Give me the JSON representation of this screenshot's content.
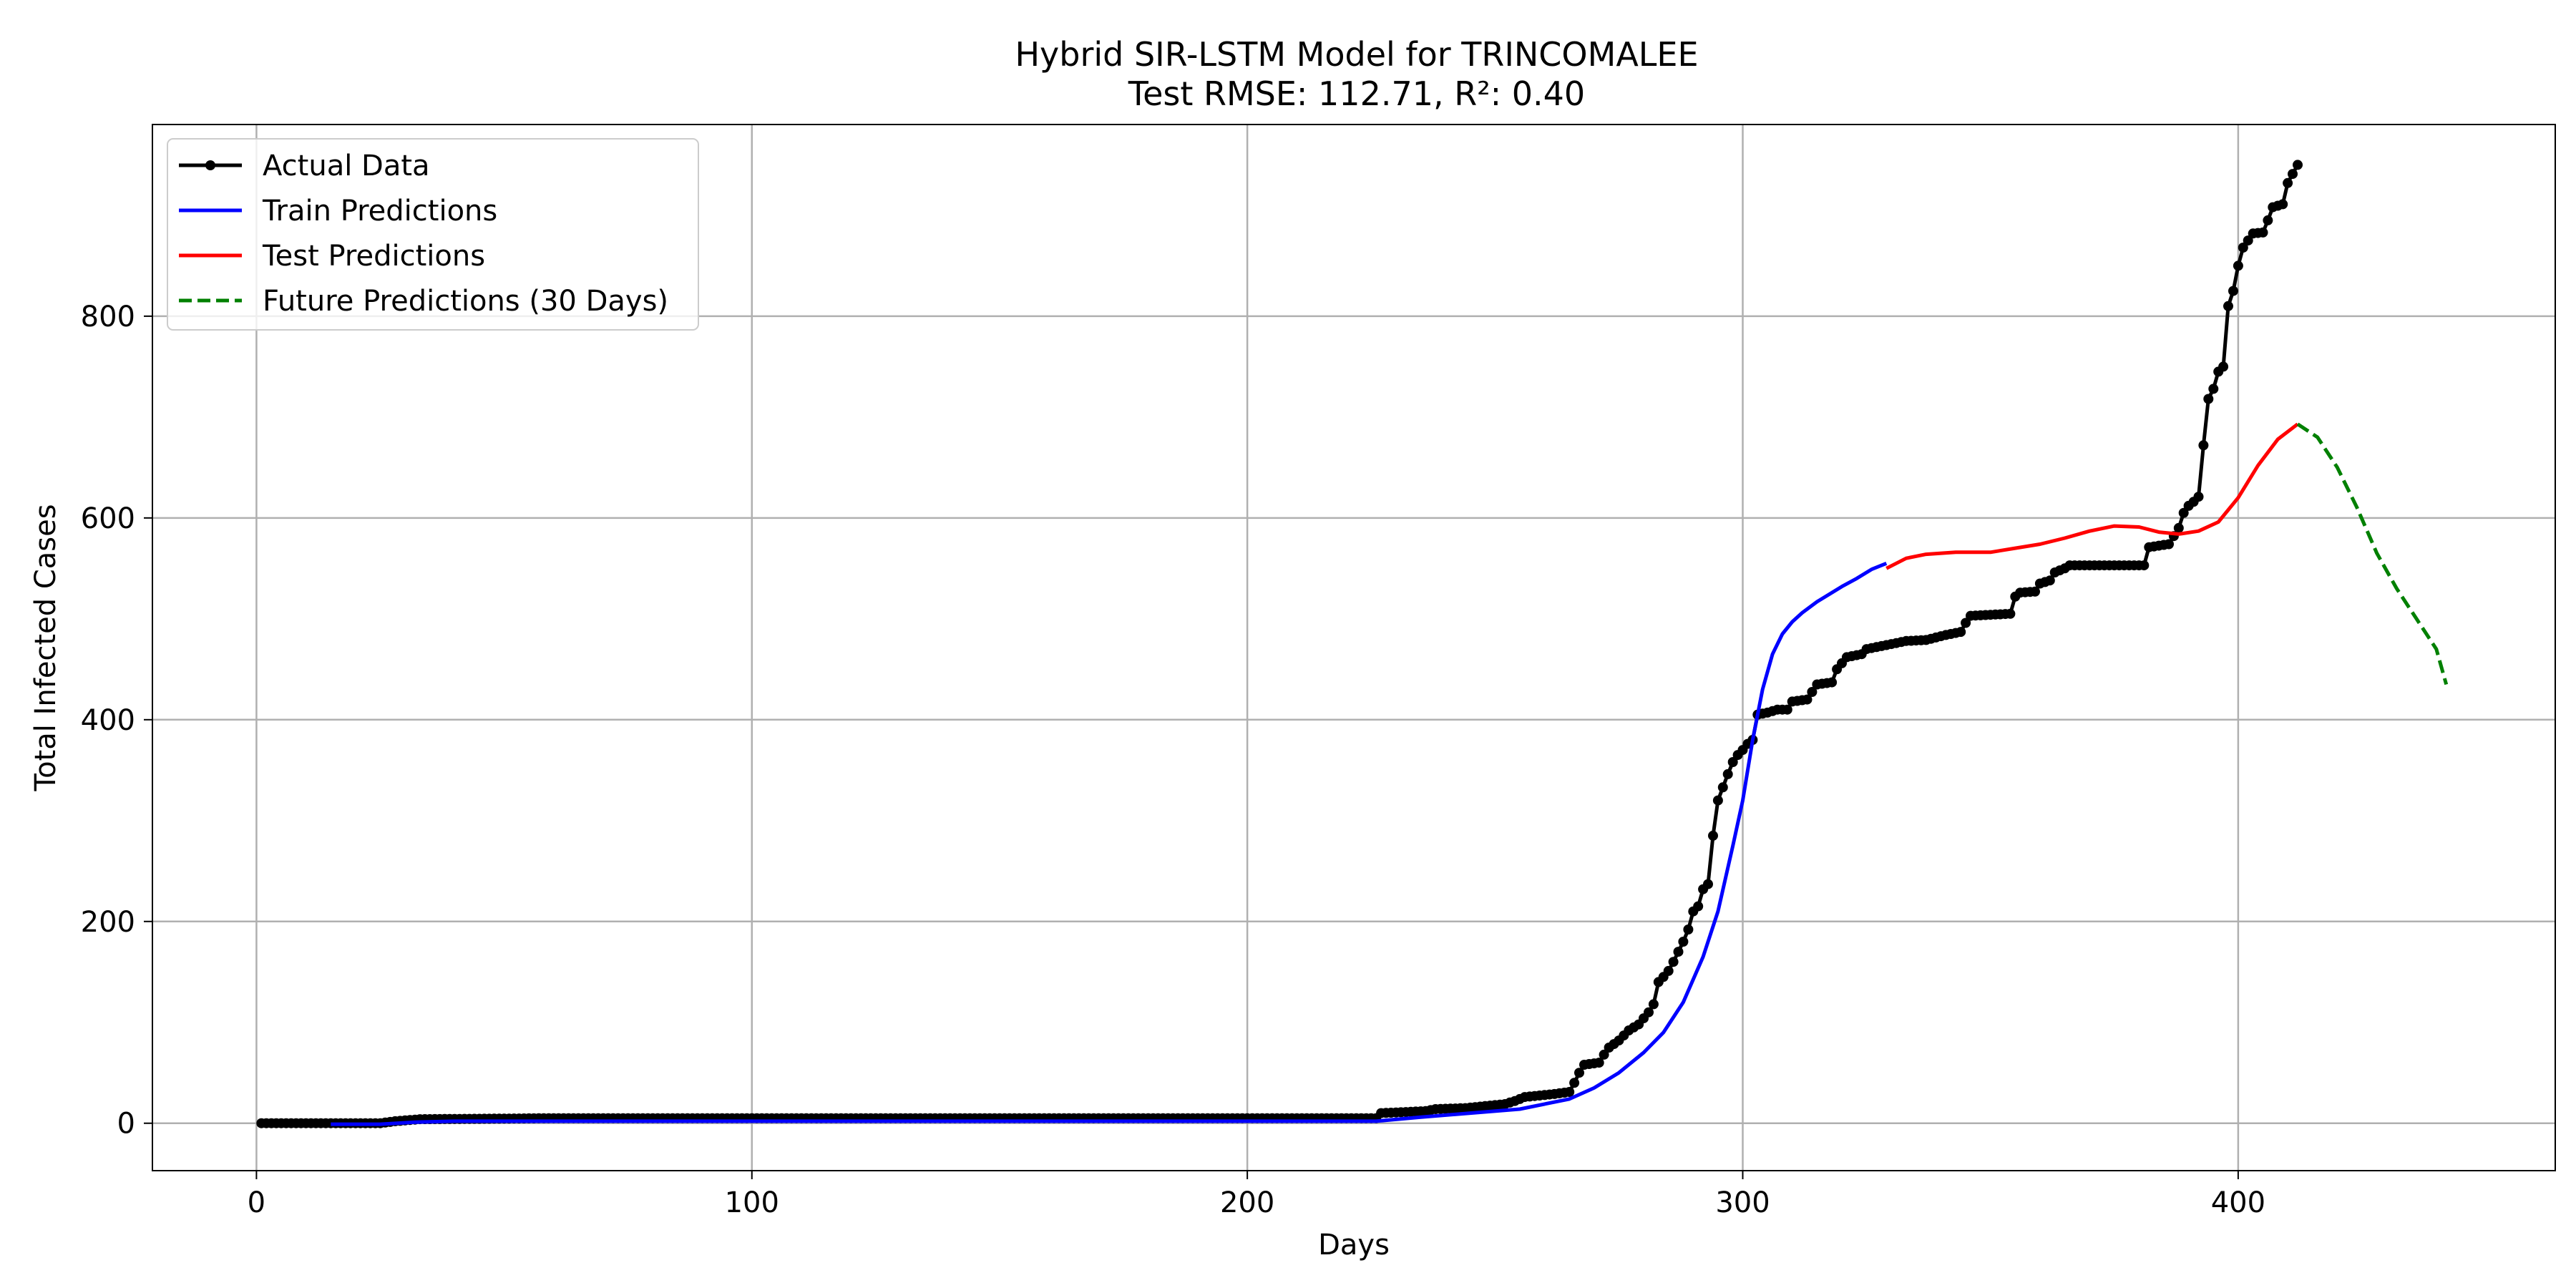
{
  "chart_data": {
    "type": "line",
    "title": "Hybrid SIR-LSTM Model for TRINCOMALEE",
    "subtitle": "Test RMSE: 112.71, R²: 0.40",
    "xlabel": "Days",
    "ylabel": "Total Infected Cases",
    "xlim": [
      -21,
      464
    ],
    "ylim": [
      -47,
      990
    ],
    "xticks": [
      0,
      100,
      200,
      300,
      400
    ],
    "yticks": [
      0,
      200,
      400,
      600,
      800
    ],
    "grid": true,
    "legend_position": "top-left",
    "series": [
      {
        "name": "Actual Data",
        "style": "line-with-markers",
        "color": "#000000",
        "points": [
          [
            1,
            0
          ],
          [
            15,
            0
          ],
          [
            25,
            0
          ],
          [
            28,
            2
          ],
          [
            33,
            4
          ],
          [
            60,
            5
          ],
          [
            100,
            5
          ],
          [
            150,
            5
          ],
          [
            200,
            5
          ],
          [
            226,
            5
          ],
          [
            227,
            10
          ],
          [
            236,
            12
          ],
          [
            238,
            14
          ],
          [
            244,
            15
          ],
          [
            248,
            17
          ],
          [
            252,
            19
          ],
          [
            254,
            22
          ],
          [
            256,
            26
          ],
          [
            258,
            27
          ],
          [
            260,
            28
          ],
          [
            262,
            29
          ],
          [
            265,
            31
          ],
          [
            266,
            40
          ],
          [
            267,
            50
          ],
          [
            268,
            58
          ],
          [
            271,
            60
          ],
          [
            272,
            68
          ],
          [
            273,
            75
          ],
          [
            275,
            82
          ],
          [
            276,
            87
          ],
          [
            277,
            92
          ],
          [
            279,
            98
          ],
          [
            280,
            104
          ],
          [
            281,
            110
          ],
          [
            282,
            118
          ],
          [
            283,
            140
          ],
          [
            284,
            145
          ],
          [
            285,
            151
          ],
          [
            286,
            160
          ],
          [
            287,
            170
          ],
          [
            288,
            180
          ],
          [
            289,
            192
          ],
          [
            290,
            210
          ],
          [
            291,
            215
          ],
          [
            292,
            232
          ],
          [
            293,
            237
          ],
          [
            294,
            285
          ],
          [
            295,
            320
          ],
          [
            296,
            333
          ],
          [
            297,
            346
          ],
          [
            298,
            358
          ],
          [
            299,
            365
          ],
          [
            300,
            370
          ],
          [
            301,
            376
          ],
          [
            302,
            380
          ],
          [
            303,
            405
          ],
          [
            305,
            407
          ],
          [
            307,
            410
          ],
          [
            309,
            410
          ],
          [
            310,
            418
          ],
          [
            313,
            420
          ],
          [
            315,
            435
          ],
          [
            318,
            437
          ],
          [
            319,
            450
          ],
          [
            321,
            462
          ],
          [
            324,
            465
          ],
          [
            325,
            470
          ],
          [
            328,
            473
          ],
          [
            330,
            475
          ],
          [
            333,
            478
          ],
          [
            337,
            479
          ],
          [
            341,
            484
          ],
          [
            344,
            487
          ],
          [
            345,
            496
          ],
          [
            346,
            503
          ],
          [
            350,
            504
          ],
          [
            354,
            505
          ],
          [
            355,
            522
          ],
          [
            356,
            526
          ],
          [
            359,
            527
          ],
          [
            360,
            535
          ],
          [
            362,
            538
          ],
          [
            363,
            546
          ],
          [
            365,
            550
          ],
          [
            366,
            553
          ],
          [
            381,
            553
          ],
          [
            382,
            571
          ],
          [
            386,
            574
          ],
          [
            387,
            582
          ],
          [
            388,
            590
          ],
          [
            389,
            605
          ],
          [
            390,
            612
          ],
          [
            391,
            616
          ],
          [
            392,
            621
          ],
          [
            393,
            672
          ],
          [
            394,
            718
          ],
          [
            395,
            728
          ],
          [
            396,
            745
          ],
          [
            397,
            750
          ],
          [
            398,
            810
          ],
          [
            399,
            825
          ],
          [
            400,
            850
          ],
          [
            401,
            868
          ],
          [
            402,
            875
          ],
          [
            403,
            882
          ],
          [
            405,
            883
          ],
          [
            406,
            895
          ],
          [
            407,
            908
          ],
          [
            409,
            911
          ],
          [
            410,
            932
          ],
          [
            411,
            941
          ],
          [
            412,
            950
          ]
        ]
      },
      {
        "name": "Train Predictions",
        "style": "line",
        "color": "#0000ff",
        "points": [
          [
            15,
            -1
          ],
          [
            25,
            -1
          ],
          [
            32,
            1
          ],
          [
            40,
            2
          ],
          [
            100,
            2
          ],
          [
            150,
            2
          ],
          [
            200,
            2
          ],
          [
            226,
            2
          ],
          [
            235,
            6
          ],
          [
            245,
            10
          ],
          [
            255,
            14
          ],
          [
            265,
            24
          ],
          [
            270,
            35
          ],
          [
            275,
            50
          ],
          [
            280,
            70
          ],
          [
            284,
            90
          ],
          [
            288,
            120
          ],
          [
            292,
            165
          ],
          [
            295,
            210
          ],
          [
            298,
            275
          ],
          [
            300,
            320
          ],
          [
            302,
            380
          ],
          [
            304,
            430
          ],
          [
            306,
            465
          ],
          [
            308,
            485
          ],
          [
            310,
            497
          ],
          [
            312,
            506
          ],
          [
            315,
            517
          ],
          [
            318,
            526
          ],
          [
            320,
            532
          ],
          [
            323,
            540
          ],
          [
            326,
            549
          ],
          [
            329,
            555
          ]
        ]
      },
      {
        "name": "Test Predictions",
        "style": "line",
        "color": "#ff0000",
        "points": [
          [
            329,
            550
          ],
          [
            333,
            560
          ],
          [
            337,
            564
          ],
          [
            343,
            566
          ],
          [
            350,
            566
          ],
          [
            355,
            570
          ],
          [
            360,
            574
          ],
          [
            365,
            580
          ],
          [
            370,
            587
          ],
          [
            375,
            592
          ],
          [
            380,
            591
          ],
          [
            384,
            586
          ],
          [
            388,
            584
          ],
          [
            392,
            587
          ],
          [
            396,
            596
          ],
          [
            400,
            620
          ],
          [
            404,
            652
          ],
          [
            408,
            678
          ],
          [
            412,
            693
          ]
        ]
      },
      {
        "name": "Future Predictions (30 Days)",
        "style": "dashed",
        "color": "#008000",
        "points": [
          [
            412,
            693
          ],
          [
            416,
            680
          ],
          [
            420,
            650
          ],
          [
            424,
            610
          ],
          [
            428,
            565
          ],
          [
            432,
            530
          ],
          [
            436,
            500
          ],
          [
            440,
            470
          ],
          [
            442,
            435
          ]
        ]
      }
    ]
  }
}
